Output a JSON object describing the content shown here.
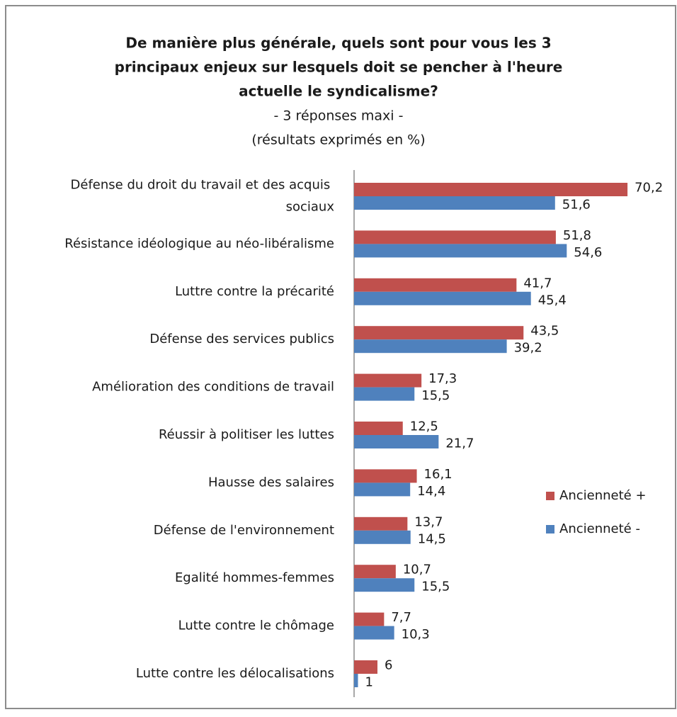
{
  "chart_data": {
    "type": "hbar",
    "title": [
      "De manière plus générale, quels sont pour vous les 3",
      "principaux enjeux sur lesquels doit se pencher à l'heure",
      "actuelle le syndicalisme?"
    ],
    "subtitle": [
      "- 3 réponses maxi -",
      "(résultats exprimés en %)"
    ],
    "categories": [
      "Défense du droit du travail et des acquis sociaux",
      "Résistance idéologique au néo-libéralisme",
      "Luttre contre la précarité",
      "Défense des services publics",
      "Amélioration des conditions de travail",
      "Réussir à politiser les luttes",
      "Hausse des salaires",
      "Défense de l'environnement",
      "Egalité hommes-femmes",
      "Lutte contre le chômage",
      "Lutte contre les délocalisations"
    ],
    "series": [
      {
        "name": "Ancienneté +",
        "color": "#c0504d",
        "values": [
          70.2,
          51.8,
          41.7,
          43.5,
          17.3,
          12.5,
          16.1,
          13.7,
          10.7,
          7.7,
          6
        ],
        "value_labels": [
          "70,2",
          "51,8",
          "41,7",
          "43,5",
          "17,3",
          "12,5",
          "16,1",
          "13,7",
          "10,7",
          "7,7",
          "6"
        ]
      },
      {
        "name": "Ancienneté -",
        "color": "#4f81bd",
        "values": [
          51.6,
          54.6,
          45.4,
          39.2,
          15.5,
          21.7,
          14.4,
          14.5,
          15.5,
          10.3,
          1
        ],
        "value_labels": [
          "51,6",
          "54,6",
          "45,4",
          "39,2",
          "15,5",
          "21,7",
          "14,4",
          "14,5",
          "15,5",
          "10,3",
          "1"
        ]
      }
    ],
    "xlim": [
      0,
      80
    ],
    "legend": "right"
  }
}
